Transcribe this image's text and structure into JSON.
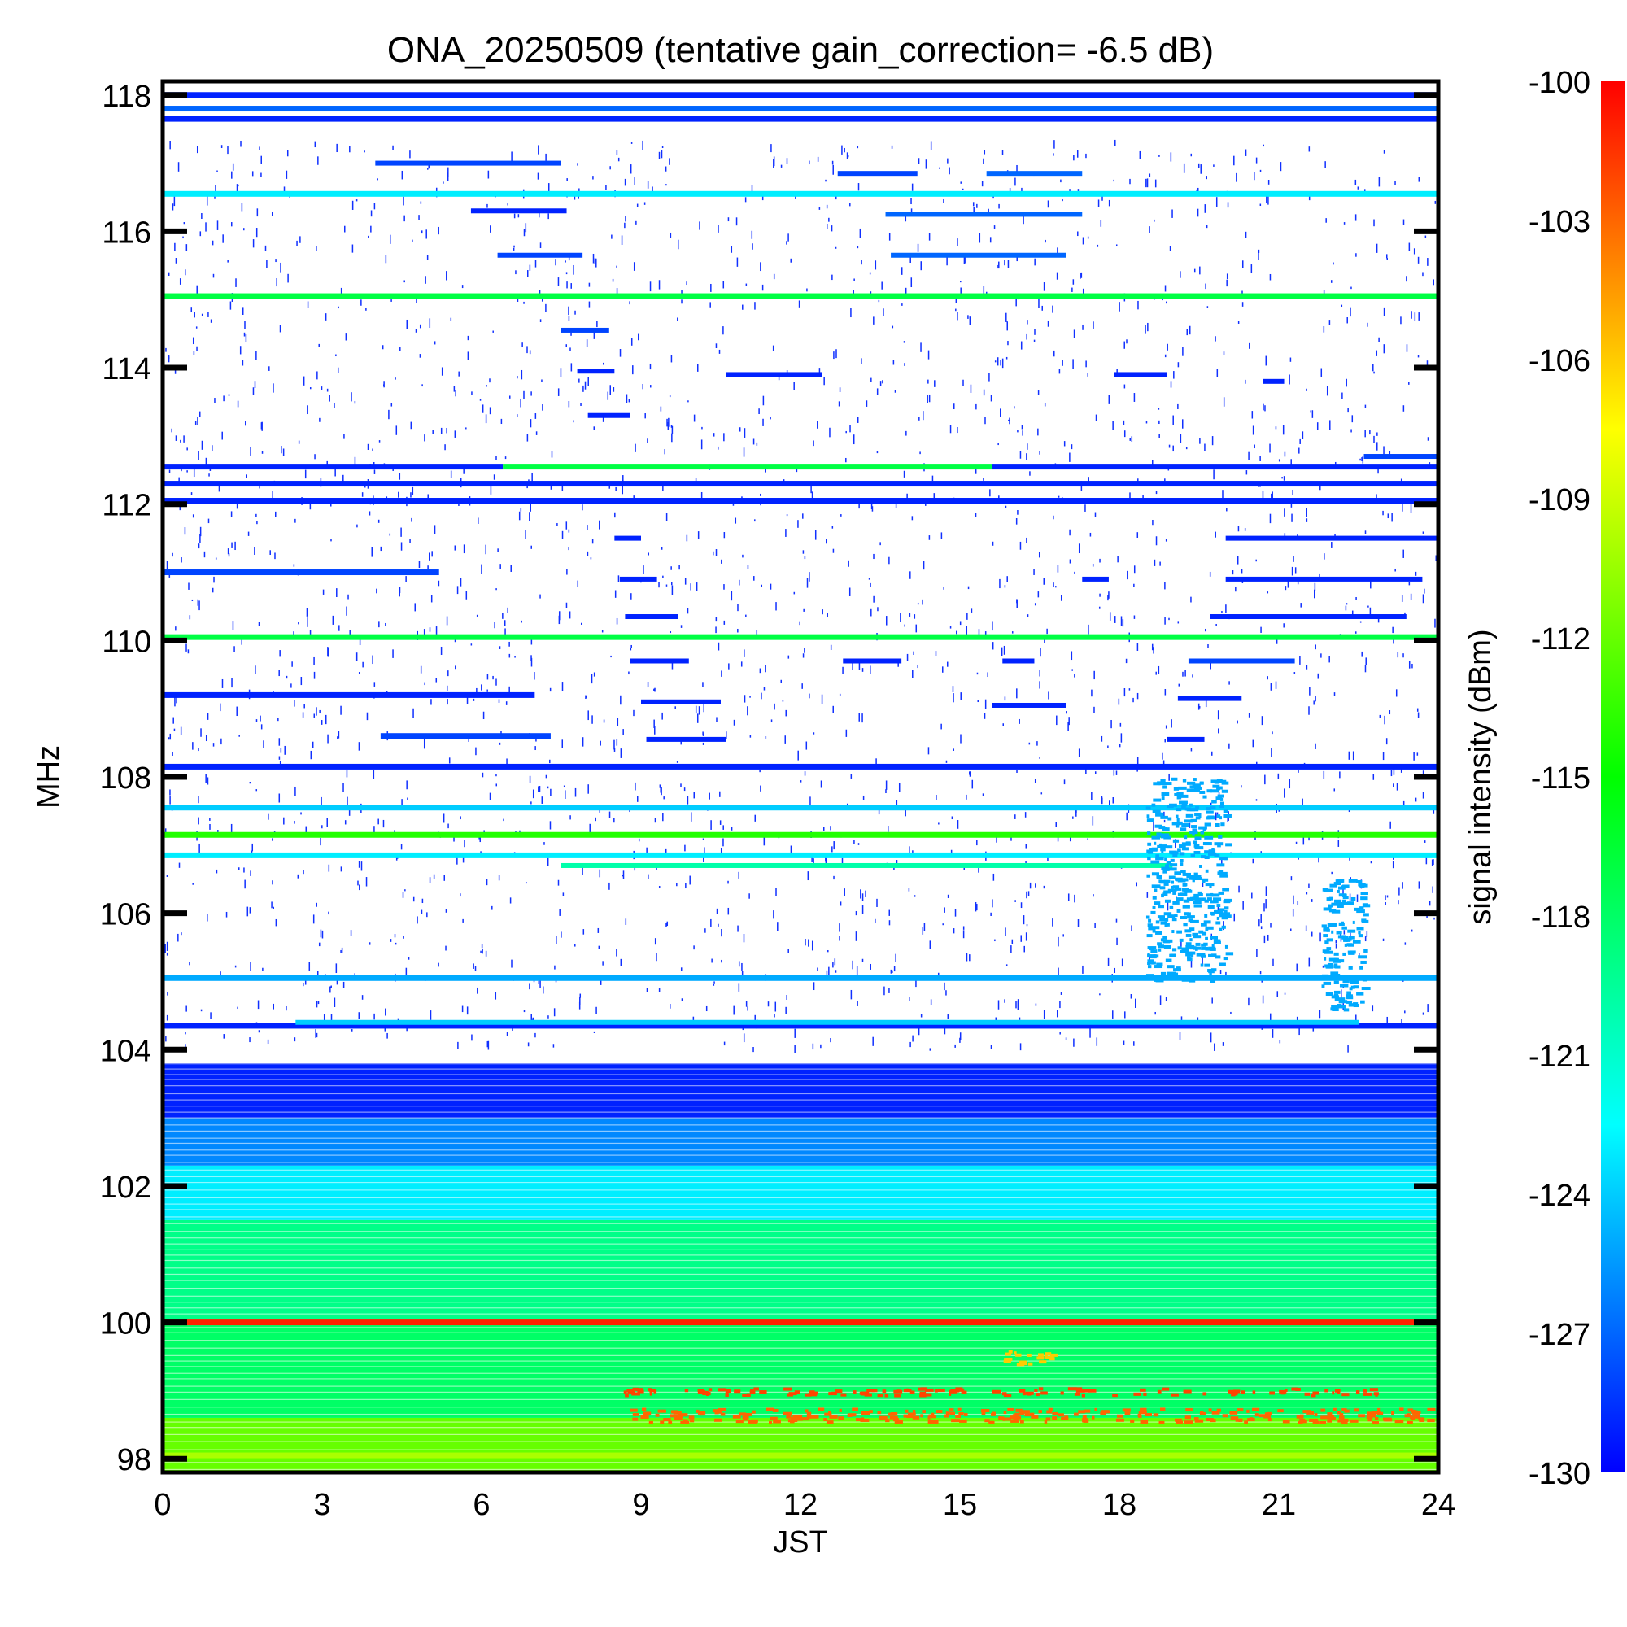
{
  "chart_data": {
    "type": "heatmap",
    "title": "ONA_20250509 (tentative gain_correction= -6.5 dB)",
    "xlabel": "JST",
    "ylabel": "MHz",
    "colorbar_label": "signal intensity (dBm)",
    "xlim": [
      0,
      24
    ],
    "ylim": [
      97.8,
      118.2
    ],
    "x_ticks": [
      0,
      3,
      6,
      9,
      12,
      15,
      18,
      21,
      24
    ],
    "y_ticks": [
      98,
      100,
      102,
      104,
      106,
      108,
      110,
      112,
      114,
      116,
      118
    ],
    "colorbar_range": [
      -130,
      -100
    ],
    "colorbar_ticks": [
      -100,
      -103,
      -106,
      -109,
      -112,
      -115,
      -118,
      -121,
      -124,
      -127,
      -130
    ],
    "colormap": [
      "#0000ff",
      "#00ffff",
      "#00ff00",
      "#ffff00",
      "#ff0000"
    ],
    "background_color": "#ffffff",
    "bands": [
      {
        "f_lo": 97.8,
        "f_hi": 98.6,
        "dbm": -112
      },
      {
        "f_lo": 98.6,
        "f_hi": 100.0,
        "dbm": -118
      },
      {
        "f_lo": 100.0,
        "f_hi": 101.5,
        "dbm": -119
      },
      {
        "f_lo": 101.5,
        "f_hi": 102.3,
        "dbm": -123
      },
      {
        "f_lo": 102.3,
        "f_hi": 103.0,
        "dbm": -126
      },
      {
        "f_lo": 103.0,
        "f_hi": 103.8,
        "dbm": -129
      }
    ],
    "lines": [
      {
        "freq": 118.0,
        "t0": 0,
        "t1": 24,
        "dbm": -129
      },
      {
        "freq": 117.8,
        "t0": 0,
        "t1": 24,
        "dbm": -127
      },
      {
        "freq": 117.65,
        "t0": 0,
        "t1": 24,
        "dbm": -129
      },
      {
        "freq": 116.55,
        "t0": 0,
        "t1": 24,
        "dbm": -123
      },
      {
        "freq": 115.05,
        "t0": 0,
        "t1": 24,
        "dbm": -117
      },
      {
        "freq": 112.55,
        "t0": 0,
        "t1": 6.4,
        "dbm": -129
      },
      {
        "freq": 112.55,
        "t0": 6.4,
        "t1": 15.6,
        "dbm": -117
      },
      {
        "freq": 112.55,
        "t0": 15.6,
        "t1": 24,
        "dbm": -129
      },
      {
        "freq": 112.3,
        "t0": 0,
        "t1": 24,
        "dbm": -129
      },
      {
        "freq": 112.05,
        "t0": 0,
        "t1": 24,
        "dbm": -129
      },
      {
        "freq": 111.0,
        "t0": 0,
        "t1": 5.2,
        "dbm": -128
      },
      {
        "freq": 110.05,
        "t0": 0,
        "t1": 24,
        "dbm": -117
      },
      {
        "freq": 109.2,
        "t0": 0,
        "t1": 7.0,
        "dbm": -129
      },
      {
        "freq": 108.6,
        "t0": 4.1,
        "t1": 7.3,
        "dbm": -128
      },
      {
        "freq": 108.15,
        "t0": 0,
        "t1": 24,
        "dbm": -129
      },
      {
        "freq": 107.55,
        "t0": 0,
        "t1": 24,
        "dbm": -124
      },
      {
        "freq": 107.15,
        "t0": 0,
        "t1": 24,
        "dbm": -114
      },
      {
        "freq": 106.85,
        "t0": 0,
        "t1": 24,
        "dbm": -123
      },
      {
        "freq": 105.05,
        "t0": 0,
        "t1": 24,
        "dbm": -125
      },
      {
        "freq": 104.35,
        "t0": 0,
        "t1": 24,
        "dbm": -129
      },
      {
        "freq": 100.0,
        "t0": 0,
        "t1": 24,
        "dbm": -101
      },
      {
        "freq": 98.05,
        "t0": 0,
        "t1": 24,
        "dbm": -110
      }
    ],
    "segments": [
      {
        "freq": 117.0,
        "t0": 4.0,
        "t1": 7.5,
        "dbm": -128
      },
      {
        "freq": 116.85,
        "t0": 12.7,
        "t1": 14.2,
        "dbm": -128
      },
      {
        "freq": 116.85,
        "t0": 15.5,
        "t1": 17.3,
        "dbm": -127
      },
      {
        "freq": 116.3,
        "t0": 5.8,
        "t1": 7.6,
        "dbm": -129
      },
      {
        "freq": 116.25,
        "t0": 13.6,
        "t1": 17.3,
        "dbm": -127
      },
      {
        "freq": 115.65,
        "t0": 6.3,
        "t1": 7.9,
        "dbm": -128
      },
      {
        "freq": 115.65,
        "t0": 13.7,
        "t1": 17.0,
        "dbm": -127
      },
      {
        "freq": 114.55,
        "t0": 7.5,
        "t1": 8.4,
        "dbm": -128
      },
      {
        "freq": 113.95,
        "t0": 7.8,
        "t1": 8.5,
        "dbm": -129
      },
      {
        "freq": 113.9,
        "t0": 10.6,
        "t1": 12.4,
        "dbm": -129
      },
      {
        "freq": 113.9,
        "t0": 17.9,
        "t1": 18.9,
        "dbm": -129
      },
      {
        "freq": 113.8,
        "t0": 20.7,
        "t1": 21.1,
        "dbm": -129
      },
      {
        "freq": 113.3,
        "t0": 8.0,
        "t1": 8.8,
        "dbm": -129
      },
      {
        "freq": 112.7,
        "t0": 22.6,
        "t1": 24,
        "dbm": -128
      },
      {
        "freq": 111.5,
        "t0": 8.5,
        "t1": 9.0,
        "dbm": -129
      },
      {
        "freq": 111.5,
        "t0": 20.0,
        "t1": 24,
        "dbm": -129
      },
      {
        "freq": 110.9,
        "t0": 8.6,
        "t1": 9.3,
        "dbm": -129
      },
      {
        "freq": 110.9,
        "t0": 20.0,
        "t1": 23.7,
        "dbm": -129
      },
      {
        "freq": 110.9,
        "t0": 17.3,
        "t1": 17.8,
        "dbm": -129
      },
      {
        "freq": 110.35,
        "t0": 8.7,
        "t1": 9.7,
        "dbm": -129
      },
      {
        "freq": 110.35,
        "t0": 19.7,
        "t1": 23.4,
        "dbm": -129
      },
      {
        "freq": 109.7,
        "t0": 8.8,
        "t1": 9.9,
        "dbm": -129
      },
      {
        "freq": 109.7,
        "t0": 12.8,
        "t1": 13.9,
        "dbm": -129
      },
      {
        "freq": 109.7,
        "t0": 15.8,
        "t1": 16.4,
        "dbm": -129
      },
      {
        "freq": 109.7,
        "t0": 19.3,
        "t1": 21.3,
        "dbm": -128
      },
      {
        "freq": 109.1,
        "t0": 9.0,
        "t1": 10.5,
        "dbm": -129
      },
      {
        "freq": 109.05,
        "t0": 15.6,
        "t1": 17.0,
        "dbm": -129
      },
      {
        "freq": 109.15,
        "t0": 19.1,
        "t1": 20.3,
        "dbm": -129
      },
      {
        "freq": 108.55,
        "t0": 9.1,
        "t1": 10.6,
        "dbm": -129
      },
      {
        "freq": 108.55,
        "t0": 18.9,
        "t1": 19.6,
        "dbm": -129
      },
      {
        "freq": 106.7,
        "t0": 7.5,
        "t1": 19.0,
        "dbm": -120
      },
      {
        "freq": 104.4,
        "t0": 2.5,
        "t1": 22.5,
        "dbm": -124
      }
    ],
    "patches": [
      {
        "f_lo": 98.55,
        "f_hi": 98.75,
        "t0": 8.8,
        "t1": 23.8,
        "dbm": -103
      },
      {
        "f_lo": 98.95,
        "f_hi": 99.05,
        "t0": 8.5,
        "t1": 22.9,
        "dbm": -102
      },
      {
        "f_lo": 99.4,
        "f_hi": 99.6,
        "t0": 15.8,
        "t1": 16.7,
        "dbm": -106
      },
      {
        "f_lo": 105.0,
        "f_hi": 108.0,
        "t0": 18.5,
        "t1": 20.0,
        "dbm": -125
      },
      {
        "f_lo": 104.6,
        "f_hi": 106.5,
        "t0": 21.8,
        "t1": 22.6,
        "dbm": -125
      }
    ]
  }
}
